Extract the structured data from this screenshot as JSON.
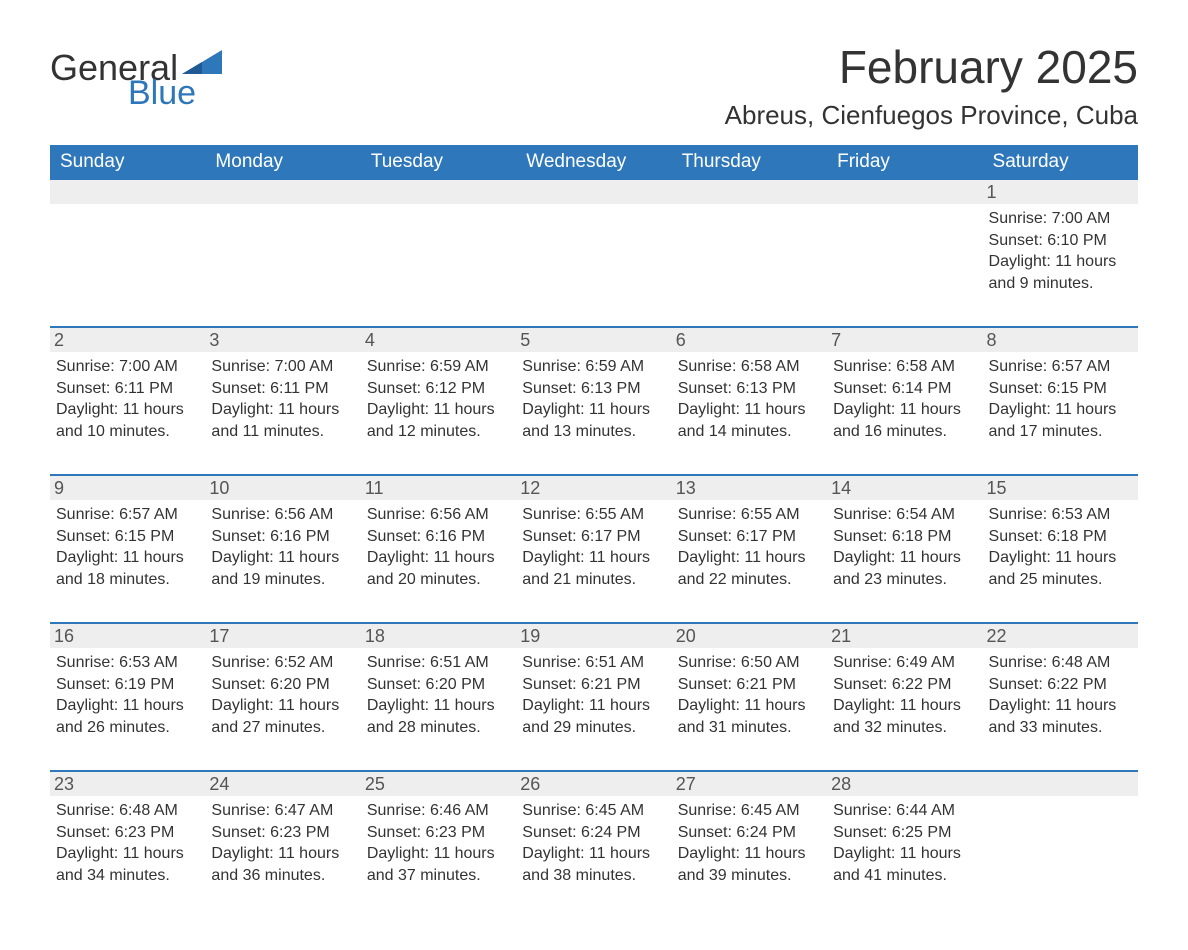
{
  "logo": {
    "general": "General",
    "blue": "Blue",
    "flag_color": "#2f77bb"
  },
  "title": "February 2025",
  "location": "Abreus, Cienfuegos Province, Cuba",
  "colors": {
    "header_bg": "#2f77bb",
    "header_text": "#ffffff",
    "row_separator": "#2f77bb",
    "daynum_bg": "#eeeeee",
    "text": "#333333"
  },
  "weekdays": [
    "Sunday",
    "Monday",
    "Tuesday",
    "Wednesday",
    "Thursday",
    "Friday",
    "Saturday"
  ],
  "weeks": [
    [
      {
        "day": "",
        "sunrise": "",
        "sunset": "",
        "daylight": ""
      },
      {
        "day": "",
        "sunrise": "",
        "sunset": "",
        "daylight": ""
      },
      {
        "day": "",
        "sunrise": "",
        "sunset": "",
        "daylight": ""
      },
      {
        "day": "",
        "sunrise": "",
        "sunset": "",
        "daylight": ""
      },
      {
        "day": "",
        "sunrise": "",
        "sunset": "",
        "daylight": ""
      },
      {
        "day": "",
        "sunrise": "",
        "sunset": "",
        "daylight": ""
      },
      {
        "day": "1",
        "sunrise": "Sunrise: 7:00 AM",
        "sunset": "Sunset: 6:10 PM",
        "daylight": "Daylight: 11 hours and 9 minutes."
      }
    ],
    [
      {
        "day": "2",
        "sunrise": "Sunrise: 7:00 AM",
        "sunset": "Sunset: 6:11 PM",
        "daylight": "Daylight: 11 hours and 10 minutes."
      },
      {
        "day": "3",
        "sunrise": "Sunrise: 7:00 AM",
        "sunset": "Sunset: 6:11 PM",
        "daylight": "Daylight: 11 hours and 11 minutes."
      },
      {
        "day": "4",
        "sunrise": "Sunrise: 6:59 AM",
        "sunset": "Sunset: 6:12 PM",
        "daylight": "Daylight: 11 hours and 12 minutes."
      },
      {
        "day": "5",
        "sunrise": "Sunrise: 6:59 AM",
        "sunset": "Sunset: 6:13 PM",
        "daylight": "Daylight: 11 hours and 13 minutes."
      },
      {
        "day": "6",
        "sunrise": "Sunrise: 6:58 AM",
        "sunset": "Sunset: 6:13 PM",
        "daylight": "Daylight: 11 hours and 14 minutes."
      },
      {
        "day": "7",
        "sunrise": "Sunrise: 6:58 AM",
        "sunset": "Sunset: 6:14 PM",
        "daylight": "Daylight: 11 hours and 16 minutes."
      },
      {
        "day": "8",
        "sunrise": "Sunrise: 6:57 AM",
        "sunset": "Sunset: 6:15 PM",
        "daylight": "Daylight: 11 hours and 17 minutes."
      }
    ],
    [
      {
        "day": "9",
        "sunrise": "Sunrise: 6:57 AM",
        "sunset": "Sunset: 6:15 PM",
        "daylight": "Daylight: 11 hours and 18 minutes."
      },
      {
        "day": "10",
        "sunrise": "Sunrise: 6:56 AM",
        "sunset": "Sunset: 6:16 PM",
        "daylight": "Daylight: 11 hours and 19 minutes."
      },
      {
        "day": "11",
        "sunrise": "Sunrise: 6:56 AM",
        "sunset": "Sunset: 6:16 PM",
        "daylight": "Daylight: 11 hours and 20 minutes."
      },
      {
        "day": "12",
        "sunrise": "Sunrise: 6:55 AM",
        "sunset": "Sunset: 6:17 PM",
        "daylight": "Daylight: 11 hours and 21 minutes."
      },
      {
        "day": "13",
        "sunrise": "Sunrise: 6:55 AM",
        "sunset": "Sunset: 6:17 PM",
        "daylight": "Daylight: 11 hours and 22 minutes."
      },
      {
        "day": "14",
        "sunrise": "Sunrise: 6:54 AM",
        "sunset": "Sunset: 6:18 PM",
        "daylight": "Daylight: 11 hours and 23 minutes."
      },
      {
        "day": "15",
        "sunrise": "Sunrise: 6:53 AM",
        "sunset": "Sunset: 6:18 PM",
        "daylight": "Daylight: 11 hours and 25 minutes."
      }
    ],
    [
      {
        "day": "16",
        "sunrise": "Sunrise: 6:53 AM",
        "sunset": "Sunset: 6:19 PM",
        "daylight": "Daylight: 11 hours and 26 minutes."
      },
      {
        "day": "17",
        "sunrise": "Sunrise: 6:52 AM",
        "sunset": "Sunset: 6:20 PM",
        "daylight": "Daylight: 11 hours and 27 minutes."
      },
      {
        "day": "18",
        "sunrise": "Sunrise: 6:51 AM",
        "sunset": "Sunset: 6:20 PM",
        "daylight": "Daylight: 11 hours and 28 minutes."
      },
      {
        "day": "19",
        "sunrise": "Sunrise: 6:51 AM",
        "sunset": "Sunset: 6:21 PM",
        "daylight": "Daylight: 11 hours and 29 minutes."
      },
      {
        "day": "20",
        "sunrise": "Sunrise: 6:50 AM",
        "sunset": "Sunset: 6:21 PM",
        "daylight": "Daylight: 11 hours and 31 minutes."
      },
      {
        "day": "21",
        "sunrise": "Sunrise: 6:49 AM",
        "sunset": "Sunset: 6:22 PM",
        "daylight": "Daylight: 11 hours and 32 minutes."
      },
      {
        "day": "22",
        "sunrise": "Sunrise: 6:48 AM",
        "sunset": "Sunset: 6:22 PM",
        "daylight": "Daylight: 11 hours and 33 minutes."
      }
    ],
    [
      {
        "day": "23",
        "sunrise": "Sunrise: 6:48 AM",
        "sunset": "Sunset: 6:23 PM",
        "daylight": "Daylight: 11 hours and 34 minutes."
      },
      {
        "day": "24",
        "sunrise": "Sunrise: 6:47 AM",
        "sunset": "Sunset: 6:23 PM",
        "daylight": "Daylight: 11 hours and 36 minutes."
      },
      {
        "day": "25",
        "sunrise": "Sunrise: 6:46 AM",
        "sunset": "Sunset: 6:23 PM",
        "daylight": "Daylight: 11 hours and 37 minutes."
      },
      {
        "day": "26",
        "sunrise": "Sunrise: 6:45 AM",
        "sunset": "Sunset: 6:24 PM",
        "daylight": "Daylight: 11 hours and 38 minutes."
      },
      {
        "day": "27",
        "sunrise": "Sunrise: 6:45 AM",
        "sunset": "Sunset: 6:24 PM",
        "daylight": "Daylight: 11 hours and 39 minutes."
      },
      {
        "day": "28",
        "sunrise": "Sunrise: 6:44 AM",
        "sunset": "Sunset: 6:25 PM",
        "daylight": "Daylight: 11 hours and 41 minutes."
      },
      {
        "day": "",
        "sunrise": "",
        "sunset": "",
        "daylight": ""
      }
    ]
  ]
}
